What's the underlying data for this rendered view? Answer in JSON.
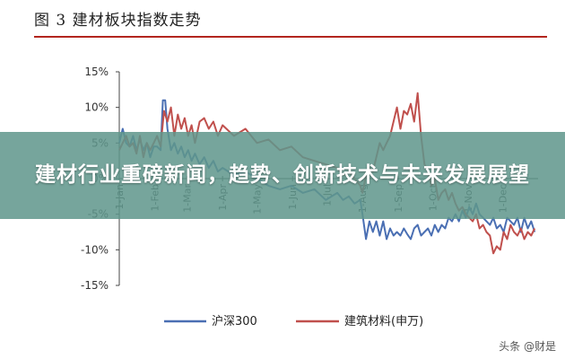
{
  "figure_title": "图 3  建材板块指数走势",
  "overlay_headline": "建材行业重磅新闻，趋势、创新技术与未来发展展望",
  "watermark": "头条 @财是",
  "chart_data": {
    "type": "line",
    "title": "图 3  建材板块指数走势",
    "ylim": [
      -15,
      15
    ],
    "yticks": [
      15,
      10,
      5,
      0,
      -5,
      -10,
      -15
    ],
    "ytick_labels": [
      "15%",
      "10%",
      "5%",
      "0%",
      "-5%",
      "-10%",
      "-15%"
    ],
    "x_tick_labels": [
      "1-Jan",
      "1-Feb",
      "1-Mar",
      "1-Apr",
      "1-May",
      "1-Jun",
      "1-Jul",
      "1-Aug",
      "1-Sep",
      "1-Oct",
      "1-Nov",
      "1-Dec"
    ],
    "x_tick_positions": [
      0,
      31,
      59,
      90,
      120,
      151,
      181,
      212,
      243,
      273,
      304,
      334
    ],
    "xlim": [
      0,
      365
    ],
    "legend_position": "bottom",
    "colors": {
      "hs300": "#4a6fb3",
      "building": "#c0504d"
    },
    "series": [
      {
        "name": "沪深300",
        "x": [
          0,
          3,
          6,
          9,
          12,
          15,
          18,
          21,
          24,
          27,
          30,
          33,
          36,
          38,
          40,
          42,
          45,
          48,
          51,
          54,
          57,
          60,
          63,
          66,
          70,
          74,
          78,
          82,
          86,
          90,
          100,
          110,
          120,
          130,
          140,
          150,
          160,
          170,
          180,
          190,
          195,
          200,
          205,
          210,
          212,
          215,
          218,
          221,
          224,
          227,
          230,
          233,
          236,
          239,
          242,
          245,
          248,
          251,
          254,
          257,
          260,
          263,
          266,
          269,
          272,
          275,
          278,
          281,
          284,
          287,
          290,
          293,
          296,
          299,
          302,
          305,
          308,
          311,
          314,
          317,
          320,
          323,
          326,
          329,
          332,
          335,
          338,
          341,
          344,
          347,
          350,
          353,
          356,
          359,
          362
        ],
        "values": [
          5,
          7,
          5,
          4.5,
          6,
          4,
          5.5,
          4,
          5,
          3,
          4.5,
          4.5,
          4,
          11,
          11,
          7,
          4,
          5,
          3.5,
          4.5,
          3,
          4,
          2.5,
          3.5,
          2,
          3,
          1.5,
          2.5,
          1,
          1.5,
          0.5,
          1,
          0,
          -1,
          -1.5,
          -1,
          -2,
          -1.5,
          -3,
          -2,
          -3,
          -2.5,
          -3.5,
          -3,
          -5,
          -8.5,
          -6,
          -7.5,
          -6,
          -8,
          -6,
          -8.5,
          -7,
          -8,
          -7.5,
          -8,
          -7,
          -7.8,
          -8.5,
          -7,
          -6.5,
          -8,
          -7.5,
          -7,
          -8,
          -6.5,
          -7.5,
          -6.5,
          -7,
          -5.5,
          -6,
          -5,
          -6,
          -4.5,
          -5.5,
          -4,
          -5,
          -3.5,
          -5,
          -5.5,
          -6,
          -6.5,
          -5.5,
          -7,
          -6.5,
          -7.5,
          -5.5,
          -6,
          -6.5,
          -5.5,
          -7.5,
          -5.5,
          -7,
          -6,
          -7.5
        ]
      },
      {
        "name": "建筑材料(申万)",
        "x": [
          0,
          3,
          6,
          9,
          12,
          15,
          18,
          21,
          24,
          27,
          30,
          33,
          36,
          39,
          42,
          45,
          48,
          51,
          54,
          57,
          60,
          63,
          66,
          70,
          74,
          78,
          82,
          86,
          90,
          100,
          110,
          120,
          130,
          140,
          150,
          160,
          170,
          180,
          190,
          195,
          200,
          205,
          210,
          212,
          215,
          218,
          221,
          224,
          227,
          230,
          233,
          236,
          239,
          242,
          245,
          248,
          251,
          254,
          257,
          260,
          263,
          266,
          269,
          272,
          275,
          278,
          281,
          284,
          287,
          290,
          293,
          296,
          299,
          302,
          305,
          308,
          311,
          314,
          317,
          320,
          323,
          326,
          329,
          332,
          335,
          338,
          341,
          344,
          347,
          350,
          353,
          356,
          359,
          362
        ],
        "values": [
          4,
          5,
          6,
          4.5,
          5,
          3.5,
          6,
          3,
          5,
          4,
          5,
          6,
          4.5,
          9.5,
          8,
          10,
          6,
          9,
          7,
          8.5,
          6,
          7.5,
          5,
          8,
          8.5,
          7,
          8,
          6,
          7.5,
          6,
          7,
          5,
          5.5,
          4,
          4.5,
          3,
          2.5,
          2,
          1.5,
          0.5,
          1,
          0,
          -1,
          -2,
          0.5,
          1.5,
          1,
          3,
          5,
          4,
          5,
          6,
          8,
          10,
          7,
          9.5,
          9,
          10.5,
          8,
          12,
          6,
          2,
          1,
          -1,
          0,
          -3,
          -2,
          -1.5,
          -3,
          -2,
          -3.5,
          -4.5,
          -4,
          -5,
          -5.5,
          -6,
          -5,
          -7,
          -6.5,
          -7.5,
          -8,
          -10.5,
          -9.5,
          -10,
          -7.5,
          -8.5,
          -6.5,
          -7.5,
          -8,
          -7,
          -8.5,
          -7.5,
          -8,
          -7
        ]
      }
    ]
  }
}
